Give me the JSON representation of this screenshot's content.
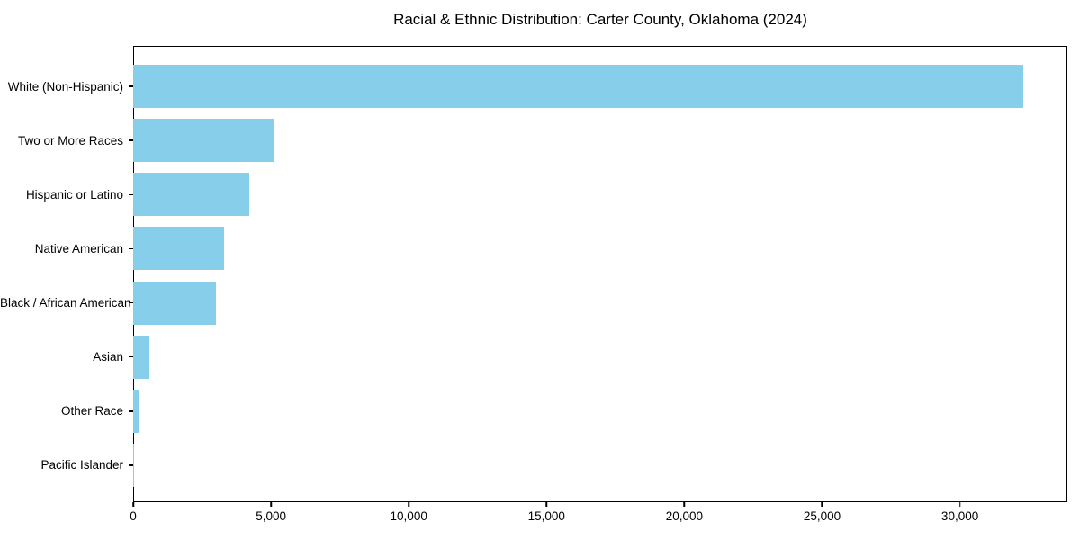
{
  "chart_data": {
    "type": "bar",
    "orientation": "horizontal",
    "title": "Racial & Ethnic Distribution: Carter County, Oklahoma (2024)",
    "xlabel": "",
    "ylabel": "",
    "categories": [
      "White (Non-Hispanic)",
      "Two or More Races",
      "Hispanic or Latino",
      "Native American",
      "Black / African American",
      "Asian",
      "Other Race",
      "Pacific Islander"
    ],
    "values": [
      32300,
      5100,
      4200,
      3300,
      3000,
      600,
      200,
      25
    ],
    "xlim": [
      0,
      33900
    ],
    "x_ticks": [
      0,
      5000,
      10000,
      15000,
      20000,
      25000,
      30000
    ],
    "x_tick_labels": [
      "0",
      "5,000",
      "10,000",
      "15,000",
      "20,000",
      "25,000",
      "30,000"
    ],
    "bar_color": "#87CEEB",
    "background_color": "#ffffff",
    "spine_color": "#000000",
    "grid": false,
    "legend": null
  }
}
